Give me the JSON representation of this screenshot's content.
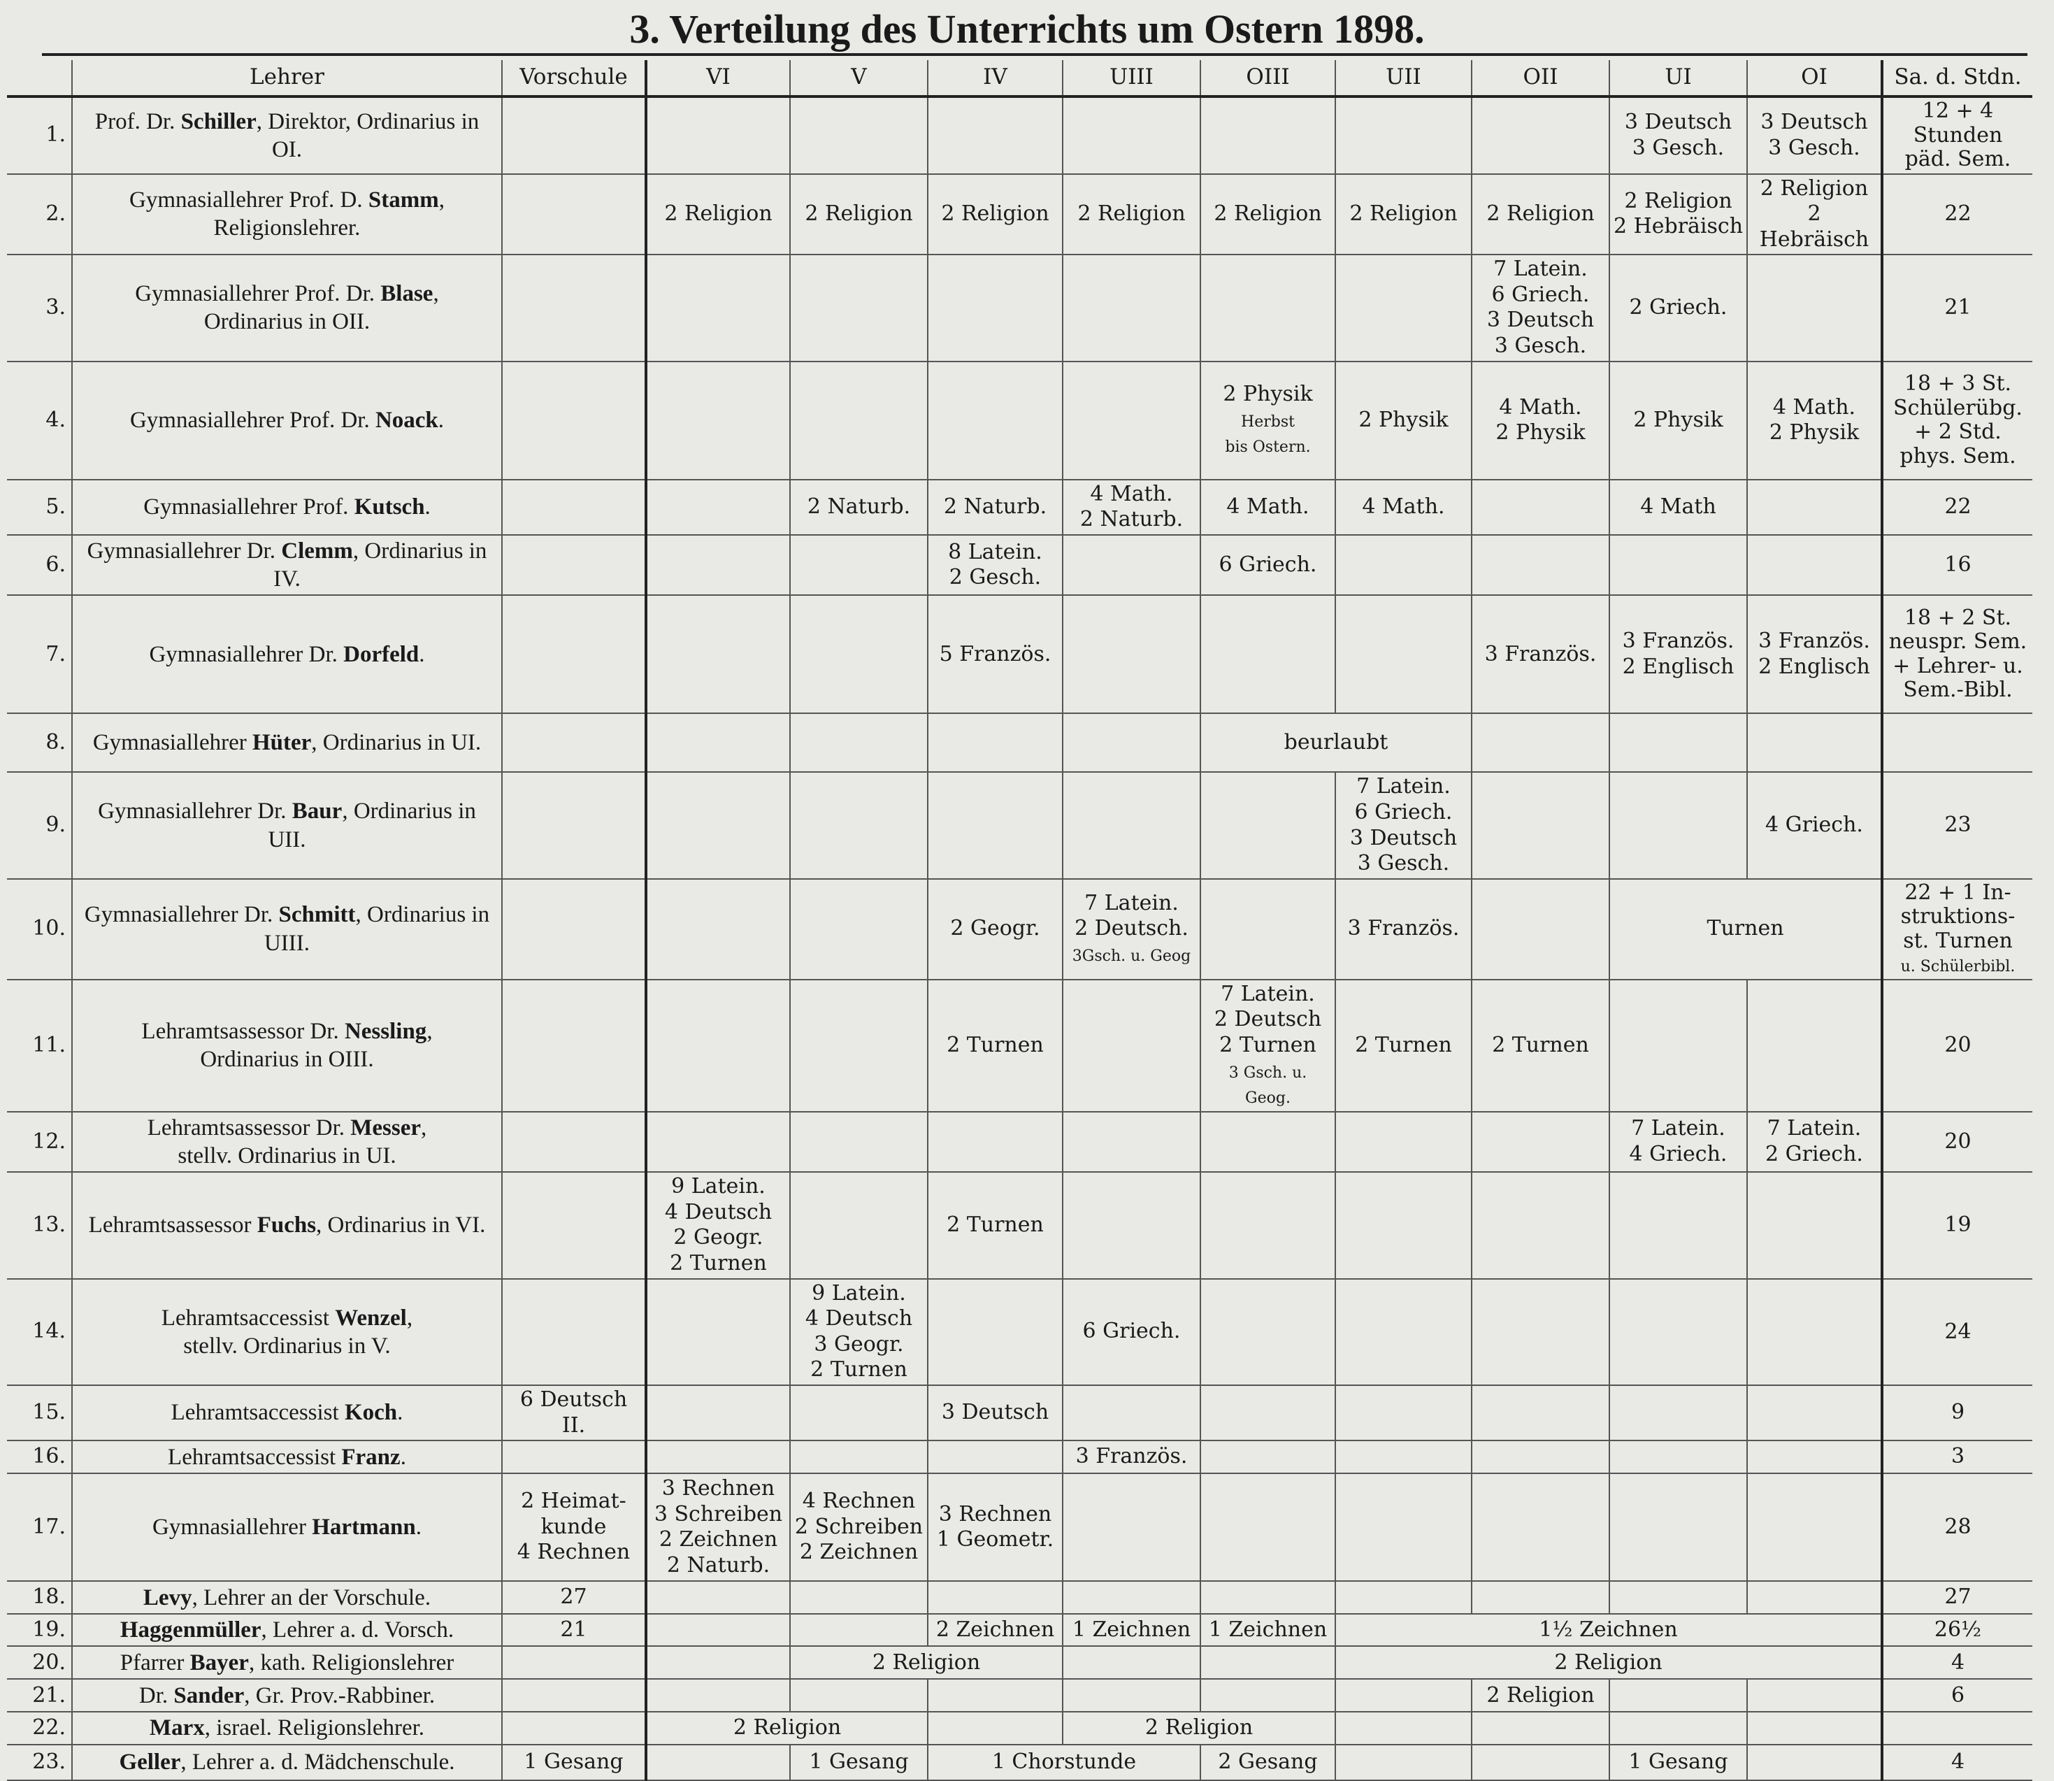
{
  "title": "3. Verteilung des Unterrichts um Ostern 1898.",
  "columns": [
    "Lehrer",
    "Vorschule",
    "VI",
    "V",
    "IV",
    "UIII",
    "OIII",
    "UII",
    "OII",
    "UI",
    "OI",
    "Sa. d. Stdn."
  ],
  "rows": [
    {
      "no": "1.",
      "pre": "Prof. Dr. ",
      "name": "Schiller",
      "post": ", Direktor, Ordinarius in OI.",
      "cells": [
        {
          "cols": [
            "UI"
          ],
          "text": "3 Deutsch\n3 Gesch."
        },
        {
          "cols": [
            "OI"
          ],
          "text": "3 Deutsch\n3 Gesch."
        }
      ],
      "sum": "12 + 4\nStunden\npäd. Sem."
    },
    {
      "no": "2.",
      "pre": "Gymnasiallehrer Prof. D. ",
      "name": "Stamm",
      "post": ",\nReligionslehrer.",
      "cells": [
        {
          "cols": [
            "VI"
          ],
          "text": "2 Religion"
        },
        {
          "cols": [
            "V"
          ],
          "text": "2 Religion"
        },
        {
          "cols": [
            "IV"
          ],
          "text": "2 Religion"
        },
        {
          "cols": [
            "UIII"
          ],
          "text": "2 Religion"
        },
        {
          "cols": [
            "OIII"
          ],
          "text": "2 Religion"
        },
        {
          "cols": [
            "UII"
          ],
          "text": "2 Religion"
        },
        {
          "cols": [
            "OII"
          ],
          "text": "2 Religion"
        },
        {
          "cols": [
            "UI"
          ],
          "text": "2 Religion\n2 Hebräisch"
        },
        {
          "cols": [
            "OI"
          ],
          "text": "2 Religion\n2 Hebräisch"
        }
      ],
      "sum": "22"
    },
    {
      "no": "3.",
      "pre": "Gymnasiallehrer Prof. Dr. ",
      "name": "Blase",
      "post": ",\nOrdinarius in OII.",
      "cells": [
        {
          "cols": [
            "OII"
          ],
          "text": "7 Latein.\n6 Griech.\n3 Deutsch\n3 Gesch."
        },
        {
          "cols": [
            "UI"
          ],
          "text": "2 Griech."
        }
      ],
      "sum": "21"
    },
    {
      "no": "4.",
      "pre": "Gymnasiallehrer Prof. Dr. ",
      "name": "Noack",
      "post": ".",
      "cells": [
        {
          "cols": [
            "OIII"
          ],
          "text": "2 Physik",
          "note": "Herbst\nbis Ostern."
        },
        {
          "cols": [
            "UII"
          ],
          "text": "2 Physik"
        },
        {
          "cols": [
            "OII"
          ],
          "text": "4 Math.\n2 Physik"
        },
        {
          "cols": [
            "UI"
          ],
          "text": "2 Physik"
        },
        {
          "cols": [
            "OI"
          ],
          "text": "4 Math.\n2 Physik"
        }
      ],
      "sum": "18 + 3 St.\nSchülerübg.\n+ 2 Std.\nphys. Sem."
    },
    {
      "no": "5.",
      "pre": "Gymnasiallehrer Prof. ",
      "name": "Kutsch",
      "post": ".",
      "cells": [
        {
          "cols": [
            "V"
          ],
          "text": "2 Naturb."
        },
        {
          "cols": [
            "IV"
          ],
          "text": "2 Naturb."
        },
        {
          "cols": [
            "UIII"
          ],
          "text": "4 Math.\n2 Naturb."
        },
        {
          "cols": [
            "OIII"
          ],
          "text": "4 Math."
        },
        {
          "cols": [
            "UII"
          ],
          "text": "4 Math."
        },
        {
          "cols": [
            "UI"
          ],
          "text": "4 Math"
        }
      ],
      "sum": "22"
    },
    {
      "no": "6.",
      "pre": "Gymnasiallehrer Dr. ",
      "name": "Clemm",
      "post": ", Ordinarius in IV.",
      "cells": [
        {
          "cols": [
            "IV"
          ],
          "text": "8 Latein.\n2 Gesch."
        },
        {
          "cols": [
            "OIII"
          ],
          "text": "6 Griech."
        }
      ],
      "sum": "16"
    },
    {
      "no": "7.",
      "pre": "Gymnasiallehrer Dr. ",
      "name": "Dorfeld",
      "post": ".",
      "cells": [
        {
          "cols": [
            "IV"
          ],
          "text": "5 Französ."
        },
        {
          "cols": [
            "OII"
          ],
          "text": "3 Französ."
        },
        {
          "cols": [
            "UI"
          ],
          "text": "3 Französ.\n2 Englisch"
        },
        {
          "cols": [
            "OI"
          ],
          "text": "3 Französ.\n2 Englisch"
        }
      ],
      "sum": "18 + 2 St.\nneuspr. Sem.\n+ Lehrer- u.\nSem.-Bibl."
    },
    {
      "no": "8.",
      "pre": "Gymnasiallehrer ",
      "name": "Hüter",
      "post": ", Ordinarius in UI.",
      "cells": [
        {
          "cols": [
            "OIII",
            "UII"
          ],
          "text": "beurlaubt"
        }
      ],
      "sum": ""
    },
    {
      "no": "9.",
      "pre": "Gymnasiallehrer Dr. ",
      "name": "Baur",
      "post": ", Ordinarius in UII.",
      "cells": [
        {
          "cols": [
            "UII"
          ],
          "text": "7 Latein.\n6 Griech.\n3 Deutsch\n3 Gesch."
        },
        {
          "cols": [
            "OI"
          ],
          "text": "4 Griech."
        }
      ],
      "sum": "23"
    },
    {
      "no": "10.",
      "pre": "Gymnasiallehrer Dr. ",
      "name": "Schmitt",
      "post": ", Ordinarius in UIII.",
      "cells": [
        {
          "cols": [
            "IV"
          ],
          "text": "2 Geogr."
        },
        {
          "cols": [
            "UIII"
          ],
          "text": "7 Latein.\n2 Deutsch.",
          "note": "3Gsch. u. Geog"
        },
        {
          "cols": [
            "UII"
          ],
          "text": "3 Französ."
        },
        {
          "cols": [
            "UI",
            "OI"
          ],
          "text": "Turnen"
        }
      ],
      "sum": "22 + 1 In-\nstruktions-\nst. Turnen",
      "sum_note": "u. Schülerbibl."
    },
    {
      "no": "11.",
      "pre": "Lehramtsassessor Dr. ",
      "name": "Nessling",
      "post": ",\nOrdinarius in OIII.",
      "cells": [
        {
          "cols": [
            "IV"
          ],
          "text": "2 Turnen"
        },
        {
          "cols": [
            "OIII"
          ],
          "text": "7 Latein.\n2 Deutsch\n2 Turnen",
          "note": "3 Gsch. u. Geog."
        },
        {
          "cols": [
            "UII"
          ],
          "text": "2 Turnen"
        },
        {
          "cols": [
            "OII"
          ],
          "text": "2 Turnen"
        }
      ],
      "sum": "20"
    },
    {
      "no": "12.",
      "pre": "Lehramtsassessor Dr. ",
      "name": "Messer",
      "post": ",\nstellv. Ordinarius in UI.",
      "cells": [
        {
          "cols": [
            "UI"
          ],
          "text": "7 Latein.\n4 Griech."
        },
        {
          "cols": [
            "OI"
          ],
          "text": "7 Latein.\n2 Griech."
        }
      ],
      "sum": "20"
    },
    {
      "no": "13.",
      "pre": "Lehramtsassessor ",
      "name": "Fuchs",
      "post": ", Ordinarius in VI.",
      "cells": [
        {
          "cols": [
            "VI"
          ],
          "text": "9 Latein.\n4 Deutsch\n2 Geogr.\n2 Turnen"
        },
        {
          "cols": [
            "IV"
          ],
          "text": "2 Turnen"
        }
      ],
      "sum": "19"
    },
    {
      "no": "14.",
      "pre": "Lehramtsaccessist ",
      "name": "Wenzel",
      "post": ",\nstellv. Ordinarius in V.",
      "cells": [
        {
          "cols": [
            "V"
          ],
          "text": "9 Latein.\n4 Deutsch\n3 Geogr.\n2 Turnen"
        },
        {
          "cols": [
            "UIII"
          ],
          "text": "6 Griech."
        }
      ],
      "sum": "24"
    },
    {
      "no": "15.",
      "pre": "Lehramtsaccessist ",
      "name": "Koch",
      "post": ".",
      "cells": [
        {
          "cols": [
            "Vorschule"
          ],
          "text": "6 Deutsch II."
        },
        {
          "cols": [
            "IV"
          ],
          "text": "3 Deutsch"
        }
      ],
      "sum": "9"
    },
    {
      "no": "16.",
      "pre": "Lehramtsaccessist ",
      "name": "Franz",
      "post": ".",
      "cells": [
        {
          "cols": [
            "UIII"
          ],
          "text": "3 Französ."
        }
      ],
      "sum": "3"
    },
    {
      "no": "17.",
      "pre": "Gymnasiallehrer ",
      "name": "Hartmann",
      "post": ".",
      "cells": [
        {
          "cols": [
            "Vorschule"
          ],
          "text": "2 Heimat-\nkunde\n4 Rechnen"
        },
        {
          "cols": [
            "VI"
          ],
          "text": "3 Rechnen\n3 Schreiben\n2 Zeichnen\n2 Naturb."
        },
        {
          "cols": [
            "V"
          ],
          "text": "4 Rechnen\n2 Schreiben\n2 Zeichnen"
        },
        {
          "cols": [
            "IV"
          ],
          "text": "3 Rechnen\n1 Geometr."
        }
      ],
      "sum": "28"
    },
    {
      "no": "18.",
      "pre": "",
      "name": "Levy",
      "post": ", Lehrer an der Vorschule.",
      "cells": [
        {
          "cols": [
            "Vorschule"
          ],
          "text": "27"
        }
      ],
      "sum": "27"
    },
    {
      "no": "19.",
      "pre": "",
      "name": "Haggenmüller",
      "post": ", Lehrer a. d. Vorsch.",
      "cells": [
        {
          "cols": [
            "Vorschule"
          ],
          "text": "21"
        },
        {
          "cols": [
            "IV"
          ],
          "text": "2 Zeichnen"
        },
        {
          "cols": [
            "UIII"
          ],
          "text": "1 Zeichnen"
        },
        {
          "cols": [
            "OIII"
          ],
          "text": "1 Zeichnen"
        },
        {
          "cols": [
            "UII",
            "OII",
            "UI",
            "OI"
          ],
          "text": "1½ Zeichnen"
        }
      ],
      "sum": "26½"
    },
    {
      "no": "20.",
      "pre": "Pfarrer ",
      "name": "Bayer",
      "post": ", kath. Religionslehrer",
      "cells": [
        {
          "cols": [
            "V",
            "IV"
          ],
          "text": "2 Religion"
        },
        {
          "cols": [
            "UII",
            "OII",
            "UI",
            "OI"
          ],
          "text": "2 Religion"
        }
      ],
      "sum": "4"
    },
    {
      "no": "21.",
      "pre": "Dr. ",
      "name": "Sander",
      "post": ", Gr. Prov.-Rabbiner.",
      "cells": [
        {
          "cols": [
            "OII"
          ],
          "text": "2 Religion"
        }
      ],
      "sum": "6"
    },
    {
      "no": "22.",
      "pre": "",
      "name": "Marx",
      "post": ", israel. Religionslehrer.",
      "cells": [
        {
          "cols": [
            "VI",
            "V"
          ],
          "text": "2 Religion"
        },
        {
          "cols": [
            "UIII",
            "OIII"
          ],
          "text": "2 Religion"
        }
      ],
      "sum": ""
    },
    {
      "no": "23.",
      "pre": "",
      "name": "Geller",
      "post": ", Lehrer a. d. Mädchenschule.",
      "cells": [
        {
          "cols": [
            "Vorschule"
          ],
          "text": "1 Gesang"
        },
        {
          "cols": [
            "V"
          ],
          "text": "1 Gesang"
        },
        {
          "cols": [
            "IV",
            "UIII"
          ],
          "text": "1 Chorstunde"
        },
        {
          "cols": [
            "OIII"
          ],
          "text": "2 Gesang"
        },
        {
          "cols": [
            "UI"
          ],
          "text": "1 Gesang"
        }
      ],
      "sum": "4"
    }
  ]
}
